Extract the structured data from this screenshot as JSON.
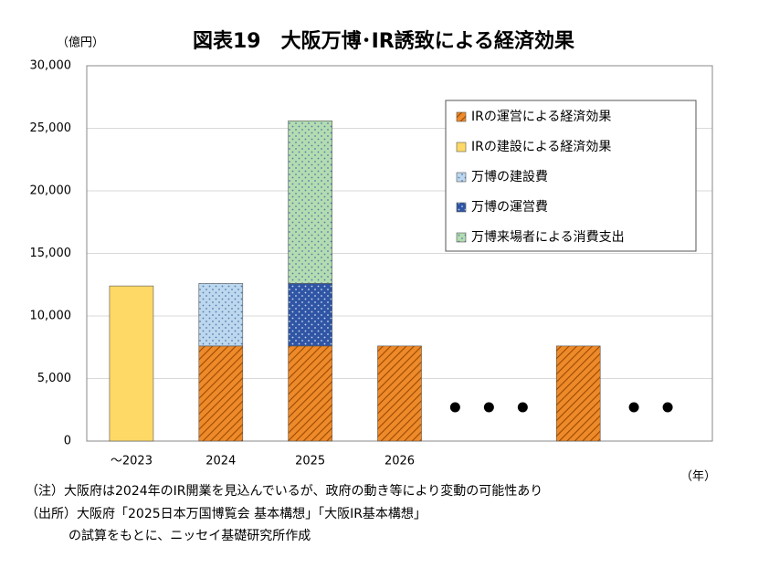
{
  "chart_data": {
    "type": "stacked_bar",
    "title": "図表19　大阪万博･IR誘致による経済効果",
    "y_label": "（億円）",
    "x_label": "（年）",
    "notes": [
      "（注）大阪府は2024年のIR開業を見込んでいるが、政府の動き等により変動の可能性あり",
      "（出所）大阪府「2025日本万国博覧会 基本構想」「大阪IR基本構想」",
      "の試算をもとに、ニッセイ基礎研究所作成"
    ],
    "categories": [
      "～2023",
      "2024",
      "2025",
      "2026",
      null,
      null,
      null
    ],
    "series": [
      {
        "name": "IRの運営による経済効果",
        "color": "#ee8a2a",
        "pattern": "hatch",
        "values": [
          null,
          7600,
          7600,
          7600,
          null,
          7600,
          null
        ]
      },
      {
        "name": "IRの建設による経済効果",
        "color": "#ffd966",
        "pattern": "none",
        "values": [
          12400,
          null,
          null,
          null,
          null,
          null,
          null
        ]
      },
      {
        "name": "万博の建設費",
        "color": "#bdd7ee",
        "pattern": "dots",
        "values": [
          null,
          5000,
          null,
          null,
          null,
          null,
          null
        ]
      },
      {
        "name": "万博の運営費",
        "color": "#2f55a4",
        "pattern": "dots",
        "values": [
          null,
          null,
          5000,
          null,
          null,
          null,
          null
        ]
      },
      {
        "name": "万博来場者による消費支出",
        "color": "#b4dcb0",
        "pattern": "dots",
        "values": [
          null,
          null,
          13000,
          null,
          null,
          null,
          null
        ]
      }
    ],
    "ylim": [
      0,
      30000
    ],
    "yticks": [
      0,
      {
        "value": 5000,
        "label": "5,000"
      },
      {
        "value": 10000,
        "label": "10,000"
      },
      {
        "value": 15000,
        "label": "15,000"
      },
      {
        "value": 20000,
        "label": "20,000"
      },
      {
        "value": 25000,
        "label": "25,000"
      },
      {
        "value": 30000,
        "label": "30,000"
      }
    ],
    "grid": true,
    "legend": "upper right"
  }
}
